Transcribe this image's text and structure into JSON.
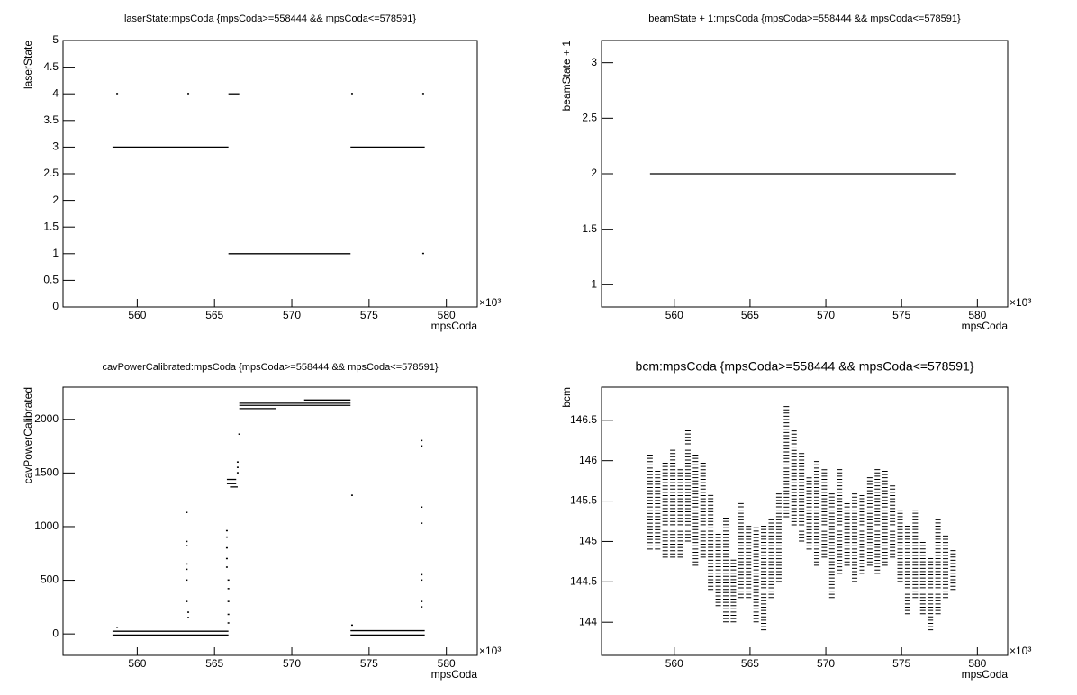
{
  "chart_data": [
    {
      "type": "scatter",
      "title": "laserState:mpsCoda {mpsCoda>=558444 && mpsCoda<=578591}",
      "xlabel": "mpsCoda",
      "ylabel": "laserState",
      "x_scale_label": "×10³",
      "xlim": [
        555.2,
        582.0
      ],
      "xticks": [
        560,
        565,
        570,
        575,
        580
      ],
      "ylim": [
        0,
        5
      ],
      "yticks": [
        0,
        0.5,
        1,
        1.5,
        2,
        2.5,
        3,
        3.5,
        4,
        4.5,
        5
      ],
      "color": "#000000",
      "segments": {
        "x0": [
          558.4,
          565.9,
          565.9,
          573.8
        ],
        "x1": [
          565.9,
          566.6,
          573.8,
          578.6
        ],
        "y": [
          3,
          4,
          1,
          3
        ]
      },
      "points": {
        "x": [
          558.7,
          563.3,
          573.9,
          578.5,
          578.5
        ],
        "y": [
          4,
          4,
          4,
          4,
          1
        ]
      }
    },
    {
      "type": "scatter",
      "title": "beamState + 1:mpsCoda {mpsCoda>=558444 && mpsCoda<=578591}",
      "xlabel": "mpsCoda",
      "ylabel": "beamState + 1",
      "x_scale_label": "×10³",
      "xlim": [
        555.2,
        582.0
      ],
      "xticks": [
        560,
        565,
        570,
        575,
        580
      ],
      "ylim": [
        0.8,
        3.2
      ],
      "yticks": [
        1,
        1.5,
        2,
        2.5,
        3
      ],
      "color": "#000000",
      "segments": {
        "x0": [
          558.4
        ],
        "x1": [
          578.6
        ],
        "y": [
          2
        ]
      }
    },
    {
      "type": "scatter",
      "title": "cavPowerCalibrated:mpsCoda {mpsCoda>=558444 && mpsCoda<=578591}",
      "xlabel": "mpsCoda",
      "ylabel": "cavPowerCalibrated",
      "x_scale_label": "×10³",
      "xlim": [
        555.2,
        582.0
      ],
      "xticks": [
        560,
        565,
        570,
        575,
        580
      ],
      "ylim": [
        -200,
        2300
      ],
      "yticks": [
        0,
        500,
        1000,
        1500,
        2000
      ],
      "color": "#000000",
      "segments": {
        "x0": [
          558.4,
          558.4,
          565.8,
          565.8,
          566.0,
          566.6,
          566.6,
          566.6,
          570.8,
          573.8,
          573.8
        ],
        "x1": [
          565.9,
          565.9,
          566.4,
          566.4,
          566.5,
          573.8,
          573.8,
          569.0,
          573.8,
          578.6,
          578.6
        ],
        "y": [
          25,
          -10,
          1440,
          1400,
          1370,
          2150,
          2130,
          2100,
          2180,
          30,
          -10
        ]
      },
      "points": {
        "x": [
          563.2,
          563.2,
          563.2,
          563.2,
          563.2,
          563.2,
          563.2,
          563.3,
          563.3,
          565.8,
          565.8,
          565.8,
          565.8,
          565.8,
          565.9,
          565.9,
          565.9,
          565.9,
          565.9,
          566.5,
          566.5,
          566.5,
          566.6,
          573.9,
          573.9,
          578.4,
          578.4,
          578.4,
          578.4,
          578.4,
          578.4,
          578.4,
          578.4,
          558.7
        ],
        "y": [
          1130,
          860,
          820,
          650,
          600,
          500,
          300,
          200,
          150,
          960,
          900,
          800,
          700,
          620,
          500,
          420,
          300,
          180,
          100,
          1500,
          1550,
          1600,
          1860,
          1290,
          80,
          1800,
          1750,
          1180,
          1030,
          550,
          500,
          300,
          250,
          60
        ]
      }
    },
    {
      "type": "scatter",
      "title": "bcm:mpsCoda {mpsCoda>=558444 && mpsCoda<=578591}",
      "xlabel": "mpsCoda",
      "ylabel": "bcm",
      "x_scale_label": "×10³",
      "xlim": [
        555.2,
        582.0
      ],
      "xticks": [
        560,
        565,
        570,
        575,
        580
      ],
      "ylim": [
        143.59,
        146.91
      ],
      "yticks": [
        144,
        144.5,
        145,
        145.5,
        146,
        146.5
      ],
      "color": "#000000",
      "bands": {
        "x": [
          558.4,
          558.9,
          559.4,
          559.9,
          560.4,
          560.9,
          561.4,
          561.9,
          562.4,
          562.9,
          563.4,
          563.9,
          564.4,
          564.9,
          565.4,
          565.9,
          566.4,
          566.9,
          567.4,
          567.9,
          568.4,
          568.9,
          569.4,
          569.9,
          570.4,
          570.9,
          571.4,
          571.9,
          572.4,
          572.9,
          573.4,
          573.9,
          574.4,
          574.9,
          575.4,
          575.9,
          576.4,
          576.9,
          577.4,
          577.9,
          578.4
        ],
        "low": [
          144.9,
          144.9,
          144.8,
          144.8,
          144.8,
          145.0,
          144.7,
          144.8,
          144.4,
          144.2,
          144.0,
          144.0,
          144.3,
          144.3,
          144.0,
          143.9,
          144.3,
          144.5,
          145.3,
          145.2,
          145.0,
          144.9,
          144.7,
          144.8,
          144.3,
          144.6,
          144.7,
          144.5,
          144.6,
          144.7,
          144.6,
          144.7,
          144.8,
          144.5,
          144.1,
          144.3,
          144.1,
          143.9,
          144.1,
          144.3,
          144.4
        ],
        "high": [
          146.1,
          145.9,
          146.0,
          146.2,
          145.9,
          146.4,
          146.1,
          146.0,
          145.6,
          145.1,
          145.3,
          144.8,
          145.5,
          145.2,
          145.2,
          145.2,
          145.3,
          145.6,
          146.7,
          146.4,
          146.1,
          145.8,
          146.0,
          145.9,
          145.6,
          145.9,
          145.5,
          145.6,
          145.6,
          145.8,
          145.9,
          145.9,
          145.7,
          145.4,
          145.2,
          145.4,
          145.0,
          144.8,
          145.3,
          145.1,
          144.9
        ]
      }
    }
  ]
}
